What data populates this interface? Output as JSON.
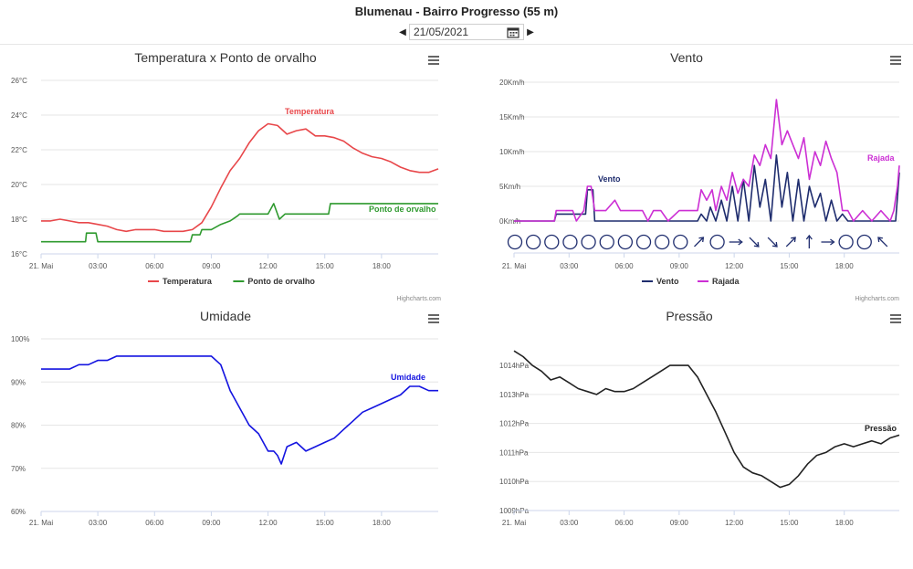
{
  "header": {
    "station": "Blumenau - Bairro Progresso (55 m)",
    "date": "21/05/2021"
  },
  "icons": {
    "prev": "caret-left-icon",
    "next": "caret-right-icon",
    "calendar": "calendar-icon",
    "menu": "hamburger-menu-icon"
  },
  "credits": "Highcharts.com",
  "x_ticks": [
    "21. Mai",
    "03:00",
    "06:00",
    "09:00",
    "12:00",
    "15:00",
    "18:00"
  ],
  "chart_data": [
    {
      "type": "line",
      "title": "Temperatura x Ponto de orvalho",
      "y_ticks": [
        "16°C",
        "18°C",
        "20°C",
        "22°C",
        "24°C",
        "26°C"
      ],
      "ylim": [
        16,
        26
      ],
      "xlim": [
        0,
        21
      ],
      "grid": true,
      "legend": "bottom",
      "series": [
        {
          "name": "Temperatura",
          "color": "#e8474a",
          "x": [
            0,
            0.5,
            1,
            1.5,
            2,
            2.5,
            3,
            3.5,
            4,
            4.5,
            5,
            5.5,
            6,
            6.5,
            7,
            7.5,
            8,
            8.5,
            9,
            9.5,
            10,
            10.5,
            11,
            11.5,
            12,
            12.5,
            13,
            13.5,
            14,
            14.5,
            15,
            15.5,
            16,
            16.5,
            17,
            17.5,
            18,
            18.5,
            19,
            19.5,
            20,
            20.5,
            21
          ],
          "values": [
            17.9,
            17.9,
            18,
            17.9,
            17.8,
            17.8,
            17.7,
            17.6,
            17.4,
            17.3,
            17.4,
            17.4,
            17.4,
            17.3,
            17.3,
            17.3,
            17.4,
            17.8,
            18.7,
            19.8,
            20.8,
            21.5,
            22.4,
            23.1,
            23.5,
            23.4,
            22.9,
            23.1,
            23.2,
            22.8,
            22.8,
            22.7,
            22.5,
            22.1,
            21.8,
            21.6,
            21.5,
            21.3,
            21.0,
            20.8,
            20.7,
            20.7,
            20.9
          ]
        },
        {
          "name": "Ponto de orvalho",
          "color": "#2f9a2f",
          "x": [
            0,
            1,
            2,
            2.35,
            2.4,
            2.9,
            3,
            4,
            5,
            6,
            7,
            7.9,
            8,
            8.4,
            8.5,
            9,
            9.5,
            10,
            10.4,
            10.5,
            11,
            11.5,
            12,
            12.3,
            12.6,
            12.9,
            13,
            14,
            15.2,
            15.3,
            16,
            17,
            18,
            19,
            20,
            21
          ],
          "values": [
            16.7,
            16.7,
            16.7,
            16.7,
            17.2,
            17.2,
            16.7,
            16.7,
            16.7,
            16.7,
            16.7,
            16.7,
            17.1,
            17.1,
            17.4,
            17.4,
            17.7,
            17.9,
            18.2,
            18.3,
            18.3,
            18.3,
            18.3,
            18.9,
            18.0,
            18.3,
            18.3,
            18.3,
            18.3,
            18.9,
            18.9,
            18.9,
            18.9,
            18.9,
            18.9,
            18.9
          ]
        }
      ]
    },
    {
      "type": "line",
      "title": "Vento",
      "y_ticks": [
        "0Km/h",
        "5Km/h",
        "10Km/h",
        "15Km/h",
        "20Km/h"
      ],
      "ylim": [
        0,
        20
      ],
      "xlim": [
        0,
        21
      ],
      "grid": true,
      "legend": "bottom",
      "series": [
        {
          "name": "Vento",
          "color": "#1f2d6e",
          "x": [
            0,
            2.2,
            2.3,
            3.9,
            4.0,
            4.3,
            4.4,
            10,
            10.2,
            10.5,
            10.7,
            11,
            11.3,
            11.6,
            11.9,
            12.2,
            12.5,
            12.8,
            13.1,
            13.4,
            13.7,
            14.0,
            14.3,
            14.6,
            14.9,
            15.2,
            15.5,
            15.8,
            16.1,
            16.4,
            16.7,
            17.0,
            17.3,
            17.6,
            17.9,
            18.2,
            20.8,
            21
          ],
          "values": [
            0,
            0,
            1,
            1,
            4.5,
            4.5,
            0,
            0,
            1,
            0,
            2,
            0,
            3,
            0,
            5,
            0,
            6,
            0,
            8,
            2,
            6,
            0,
            9.5,
            2,
            7,
            0,
            6,
            0,
            5,
            2,
            4,
            0,
            3,
            0,
            1,
            0,
            0,
            7
          ]
        },
        {
          "name": "Rajada",
          "color": "#cc2fd4",
          "x": [
            0,
            2.2,
            2.3,
            3.2,
            3.4,
            3.8,
            4.0,
            4.2,
            4.4,
            5,
            5.5,
            5.8,
            6,
            7,
            7.3,
            7.6,
            8,
            8.4,
            9,
            9.5,
            10,
            10.2,
            10.5,
            10.8,
            11,
            11.3,
            11.6,
            11.9,
            12.2,
            12.5,
            12.8,
            13.1,
            13.4,
            13.7,
            14.0,
            14.3,
            14.6,
            14.9,
            15.2,
            15.5,
            15.8,
            16.1,
            16.4,
            16.7,
            17.0,
            17.3,
            17.6,
            17.9,
            18.2,
            18.5,
            19,
            19.5,
            20,
            20.5,
            20.7,
            20.9,
            21
          ],
          "values": [
            0,
            0,
            1.5,
            1.5,
            0,
            1.5,
            5,
            5,
            1.5,
            1.5,
            3,
            1.5,
            1.5,
            1.5,
            0,
            1.5,
            1.5,
            0,
            1.5,
            1.5,
            1.5,
            4.5,
            3,
            4.5,
            1.5,
            5,
            3,
            7,
            4,
            6,
            5,
            9.5,
            8,
            11,
            9,
            17.5,
            11,
            13,
            11,
            9,
            12,
            6,
            10,
            8,
            11.5,
            9,
            7,
            1.5,
            1.5,
            0,
            1.5,
            0,
            1.5,
            0,
            1.5,
            5,
            8
          ]
        }
      ],
      "direction_ticks": [
        "calm",
        "calm",
        "calm",
        "calm",
        "calm",
        "calm",
        "calm",
        "calm",
        "calm",
        "calm",
        "NE",
        "calm",
        "E",
        "SE",
        "SE",
        "NE",
        "N",
        "E",
        "calm",
        "calm",
        "NW"
      ],
      "direction_label": "Rajada"
    },
    {
      "type": "line",
      "title": "Umidade",
      "y_ticks": [
        "60%",
        "70%",
        "80%",
        "90%",
        "100%"
      ],
      "ylim": [
        60,
        100
      ],
      "xlim": [
        0,
        21
      ],
      "grid": true,
      "series": [
        {
          "name": "Umidade",
          "color": "#1414e0",
          "x": [
            0,
            1,
            1.5,
            2,
            2.5,
            3,
            3.5,
            4,
            4.5,
            5,
            5.5,
            6,
            6.5,
            7,
            7.5,
            8,
            8.5,
            9,
            9.5,
            10,
            10.5,
            11,
            11.5,
            12,
            12.3,
            12.5,
            12.7,
            13,
            13.5,
            14,
            14.5,
            15,
            15.5,
            16,
            16.5,
            17,
            17.5,
            18,
            18.5,
            19,
            19.5,
            20,
            20.5,
            21
          ],
          "values": [
            93,
            93,
            93,
            94,
            94,
            95,
            95,
            96,
            96,
            96,
            96,
            96,
            96,
            96,
            96,
            96,
            96,
            96,
            94,
            88,
            84,
            80,
            78,
            74,
            74,
            73,
            71,
            75,
            76,
            74,
            75,
            76,
            77,
            79,
            81,
            83,
            84,
            85,
            86,
            87,
            89,
            89,
            88,
            88
          ]
        }
      ]
    },
    {
      "type": "line",
      "title": "Pressão",
      "y_ticks": [
        "1009hPa",
        "1010hPa",
        "1011hPa",
        "1012hPa",
        "1013hPa",
        "1014hPa"
      ],
      "ylim": [
        1009,
        1014.6
      ],
      "xlim": [
        0,
        21
      ],
      "grid": true,
      "series": [
        {
          "name": "Pressão",
          "color": "#222222",
          "x": [
            0,
            0.5,
            1,
            1.5,
            2,
            2.5,
            3,
            3.5,
            4,
            4.5,
            5,
            5.5,
            6,
            6.5,
            7,
            7.5,
            8,
            8.5,
            9,
            9.5,
            10,
            10.5,
            11,
            11.5,
            12,
            12.5,
            13,
            13.5,
            14,
            14.5,
            15,
            15.5,
            16,
            16.5,
            17,
            17.5,
            18,
            18.5,
            19,
            19.5,
            20,
            20.5,
            21
          ],
          "values": [
            1014.5,
            1014.3,
            1014,
            1013.8,
            1013.5,
            1013.6,
            1013.4,
            1013.2,
            1013.1,
            1013,
            1013.2,
            1013.1,
            1013.1,
            1013.2,
            1013.4,
            1013.6,
            1013.8,
            1014.0,
            1014.0,
            1014.0,
            1013.6,
            1013.0,
            1012.4,
            1011.7,
            1011.0,
            1010.5,
            1010.3,
            1010.2,
            1010.0,
            1009.8,
            1009.9,
            1010.2,
            1010.6,
            1010.9,
            1011.0,
            1011.2,
            1011.3,
            1011.2,
            1011.3,
            1011.4,
            1011.3,
            1011.5,
            1011.6
          ]
        }
      ]
    }
  ]
}
